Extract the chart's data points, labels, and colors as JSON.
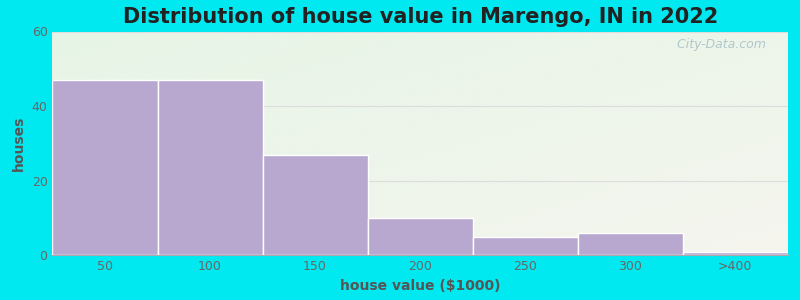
{
  "title": "Distribution of house value in Marengo, IN in 2022",
  "xlabel": "house value ($1000)",
  "ylabel": "houses",
  "bar_labels": [
    "50",
    "100",
    "150",
    "200",
    "250",
    "300",
    ">400"
  ],
  "bar_values": [
    47,
    47,
    27,
    10,
    5,
    6,
    1
  ],
  "bar_color": "#b8a8d0",
  "bar_edge_color": "#ffffff",
  "ylim": [
    0,
    60
  ],
  "yticks": [
    0,
    20,
    40,
    60
  ],
  "background_outer": "#00e8f0",
  "bg_gradient_top_left": "#e6f5e6",
  "bg_gradient_bottom_right": "#f5f5ee",
  "grid_color": "#dddddd",
  "title_fontsize": 15,
  "axis_label_fontsize": 10,
  "tick_fontsize": 9,
  "watermark_text": " City-Data.com",
  "watermark_color": "#b0c8cc"
}
